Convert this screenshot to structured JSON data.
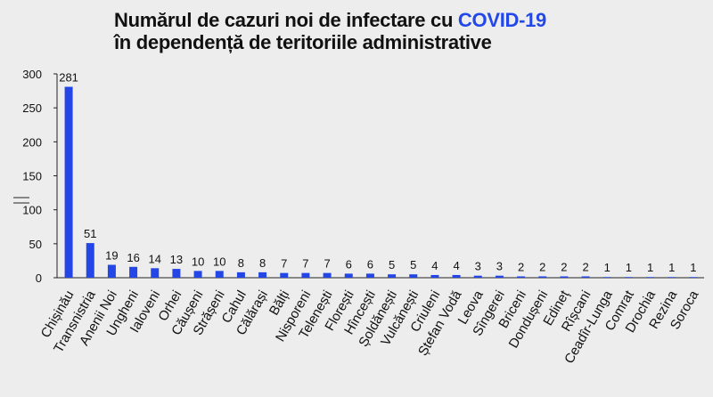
{
  "title": {
    "line1_prefix": "Numărul de cazuri noi de infectare cu ",
    "line1_accent": "COVID-19",
    "line2": "în dependență de teritoriile administrative"
  },
  "colors": {
    "bar": "#2446e6",
    "accent": "#2448e8",
    "background": "#ededed"
  },
  "chart_data": {
    "type": "bar",
    "title": "Numărul de cazuri noi de infectare cu COVID-19 în dependență de teritoriile administrative",
    "categories": [
      "Chișinău",
      "Transnistria",
      "Anenii Noi",
      "Ungheni",
      "Ialoveni",
      "Orhei",
      "Căușeni",
      "Strășeni",
      "Cahul",
      "Călărași",
      "Bălți",
      "Nisporeni",
      "Telenești",
      "Florești",
      "Hîncești",
      "Șoldănești",
      "Vulcănești",
      "Criuleni",
      "Ștefan Vodă",
      "Leova",
      "Sîngerei",
      "Briceni",
      "Dondușeni",
      "Edineț",
      "Rîșcani",
      "Ceadîr-Lunga",
      "Comrat",
      "Drochia",
      "Rezina",
      "Soroca"
    ],
    "values": [
      281,
      51,
      19,
      16,
      14,
      13,
      10,
      10,
      8,
      8,
      7,
      7,
      7,
      6,
      6,
      5,
      5,
      4,
      4,
      3,
      3,
      2,
      2,
      2,
      2,
      1,
      1,
      1,
      1,
      1
    ],
    "ylim": [
      0,
      300
    ],
    "yticks": [
      0,
      50,
      100,
      150,
      200,
      250,
      300
    ],
    "data_labels": true,
    "grid": false,
    "legend": "none"
  }
}
